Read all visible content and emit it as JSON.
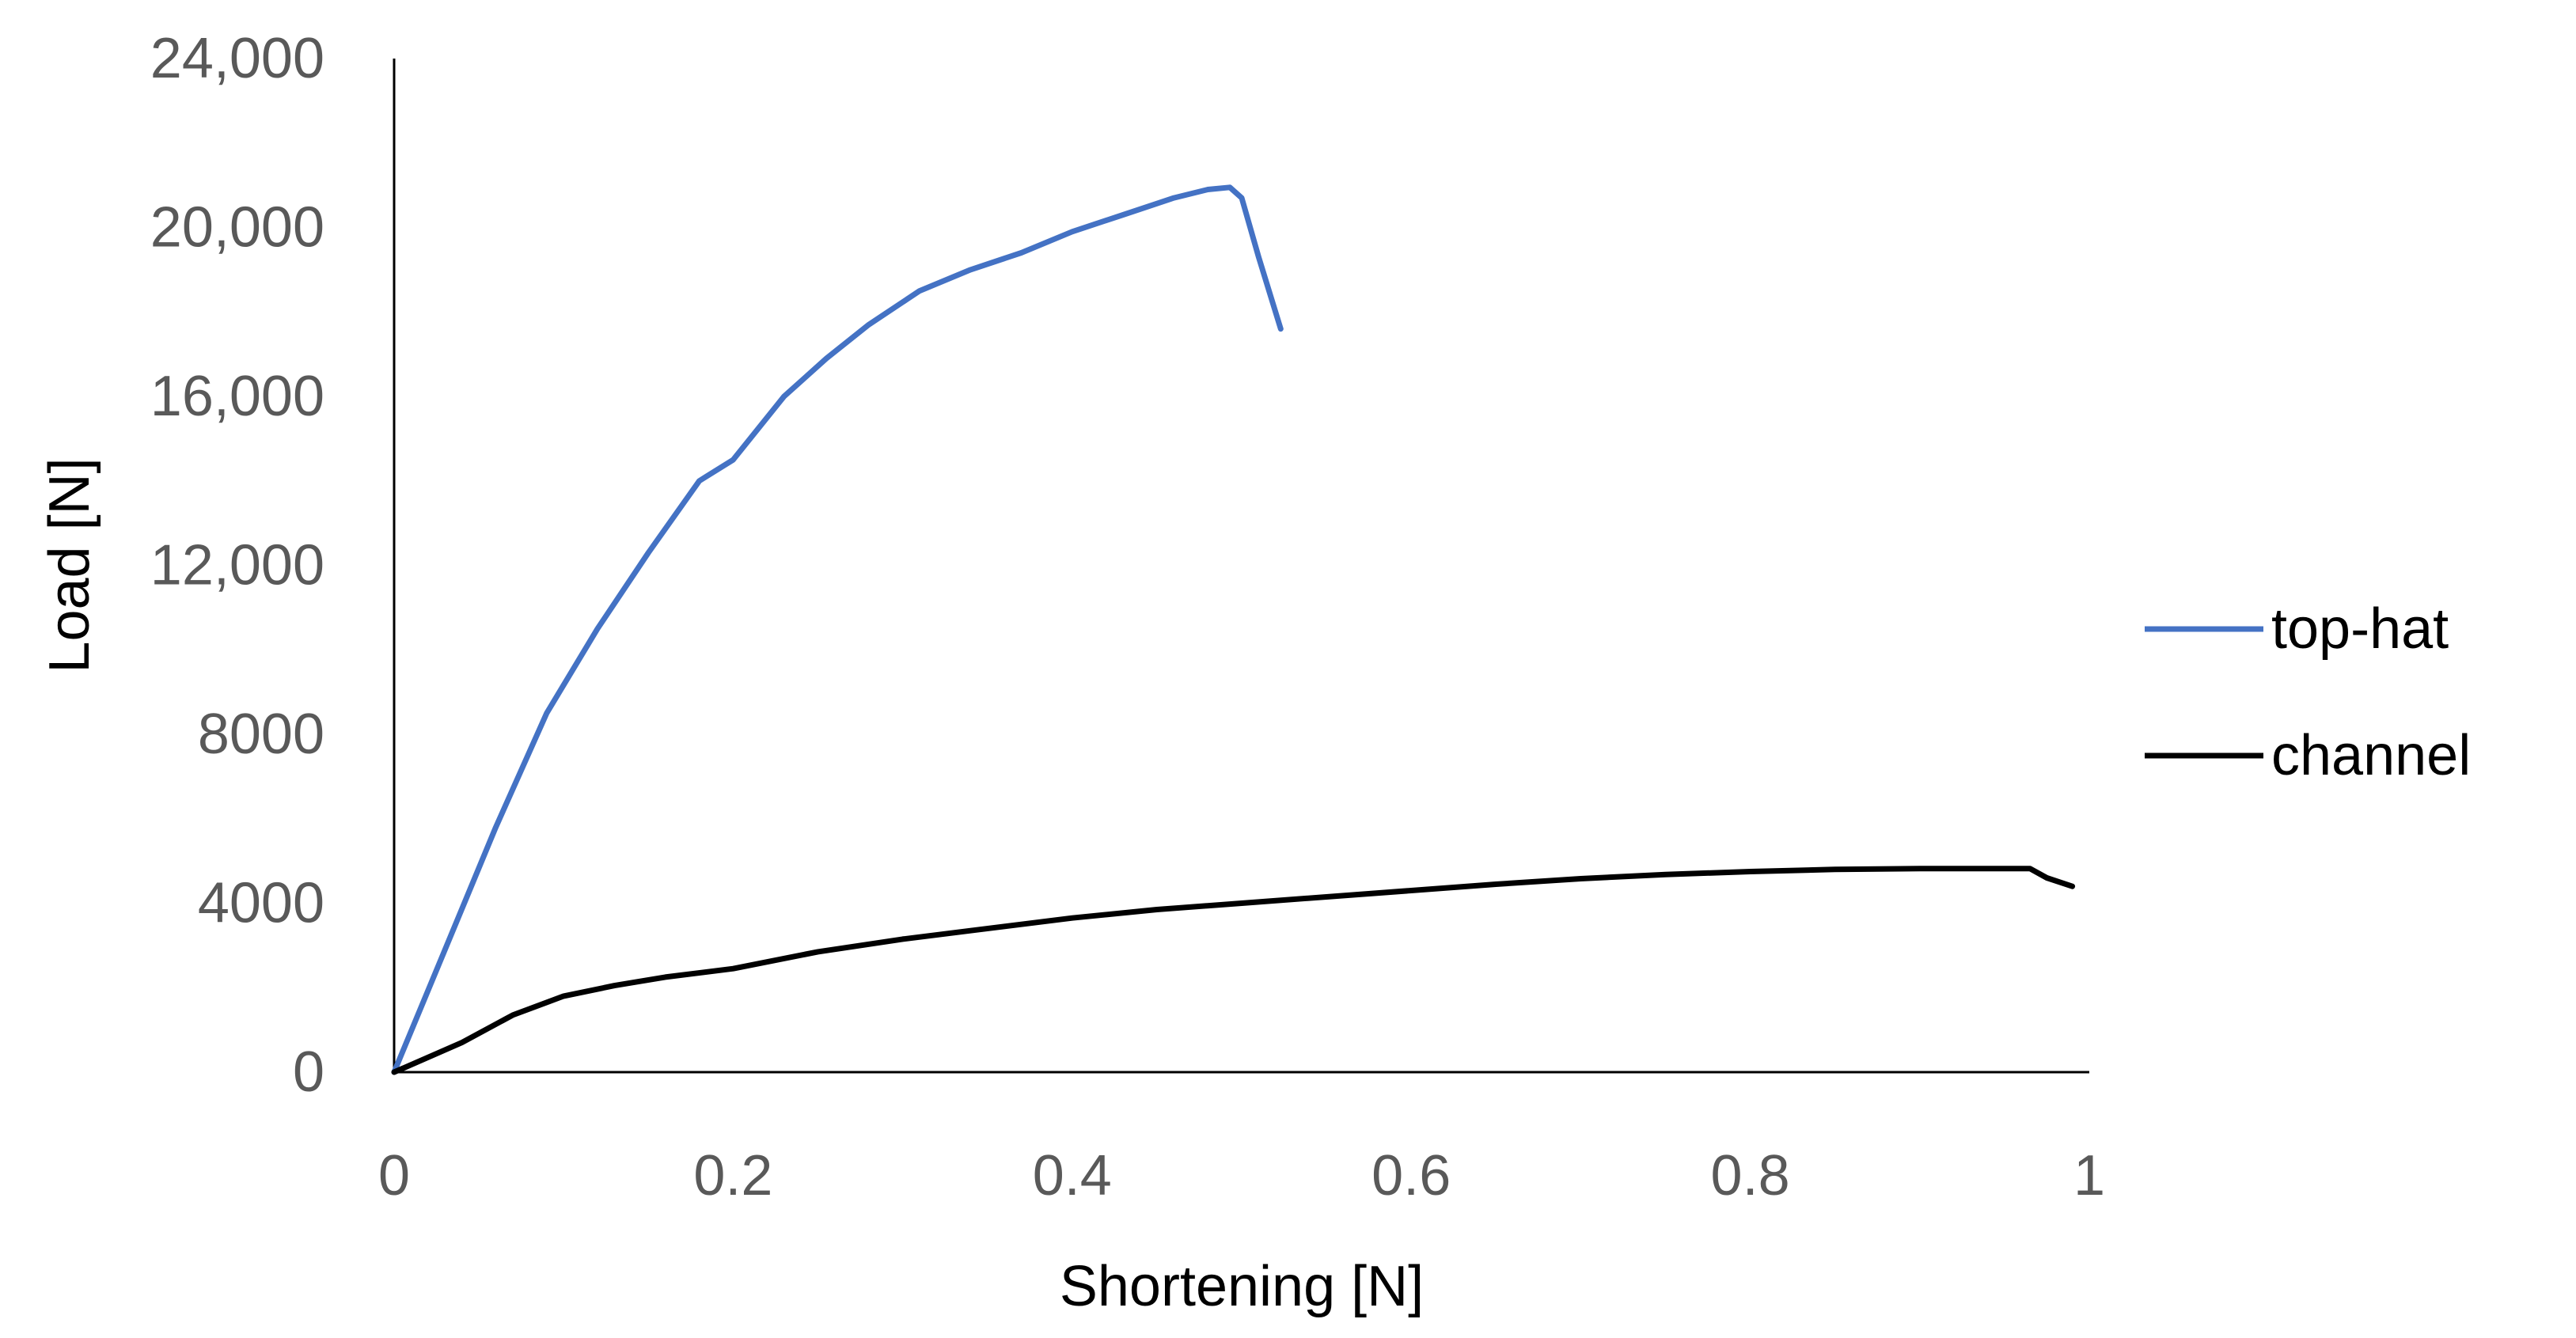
{
  "chart_data": {
    "type": "line",
    "title": "",
    "xlabel": "Shortening [N]",
    "ylabel": "Load [N]",
    "xlim": [
      0,
      1
    ],
    "ylim": [
      0,
      24000
    ],
    "x_ticks": [
      0,
      0.2,
      0.4,
      0.6,
      0.8,
      1
    ],
    "x_tick_labels": [
      "0",
      "0.2",
      "0.4",
      "0.6",
      "0.8",
      "1"
    ],
    "y_ticks": [
      0,
      4000,
      8000,
      12000,
      16000,
      20000,
      24000
    ],
    "y_tick_labels": [
      "0",
      "4000",
      "8000",
      "12,000",
      "16,000",
      "20,000",
      "24,000"
    ],
    "grid": false,
    "legend_position": "right",
    "series": [
      {
        "name": "top-hat",
        "color": "#4472C4",
        "points": [
          [
            0,
            0
          ],
          [
            0.03,
            2900
          ],
          [
            0.06,
            5800
          ],
          [
            0.09,
            8500
          ],
          [
            0.12,
            10500
          ],
          [
            0.15,
            12300
          ],
          [
            0.18,
            14000
          ],
          [
            0.2,
            14500
          ],
          [
            0.23,
            16000
          ],
          [
            0.255,
            16900
          ],
          [
            0.28,
            17700
          ],
          [
            0.31,
            18500
          ],
          [
            0.34,
            19000
          ],
          [
            0.37,
            19400
          ],
          [
            0.4,
            19900
          ],
          [
            0.43,
            20300
          ],
          [
            0.46,
            20700
          ],
          [
            0.48,
            20900
          ],
          [
            0.493,
            20950
          ],
          [
            0.5,
            20700
          ],
          [
            0.51,
            19300
          ],
          [
            0.523,
            17600
          ]
        ]
      },
      {
        "name": "channel",
        "color": "#000000",
        "points": [
          [
            0,
            0
          ],
          [
            0.04,
            700
          ],
          [
            0.07,
            1350
          ],
          [
            0.1,
            1800
          ],
          [
            0.13,
            2050
          ],
          [
            0.16,
            2250
          ],
          [
            0.2,
            2450
          ],
          [
            0.25,
            2850
          ],
          [
            0.3,
            3150
          ],
          [
            0.34,
            3350
          ],
          [
            0.4,
            3650
          ],
          [
            0.45,
            3850
          ],
          [
            0.5,
            4000
          ],
          [
            0.55,
            4150
          ],
          [
            0.6,
            4300
          ],
          [
            0.65,
            4450
          ],
          [
            0.7,
            4580
          ],
          [
            0.75,
            4680
          ],
          [
            0.8,
            4750
          ],
          [
            0.85,
            4800
          ],
          [
            0.9,
            4820
          ],
          [
            0.94,
            4820
          ],
          [
            0.965,
            4820
          ],
          [
            0.975,
            4600
          ],
          [
            0.99,
            4400
          ]
        ]
      }
    ]
  }
}
